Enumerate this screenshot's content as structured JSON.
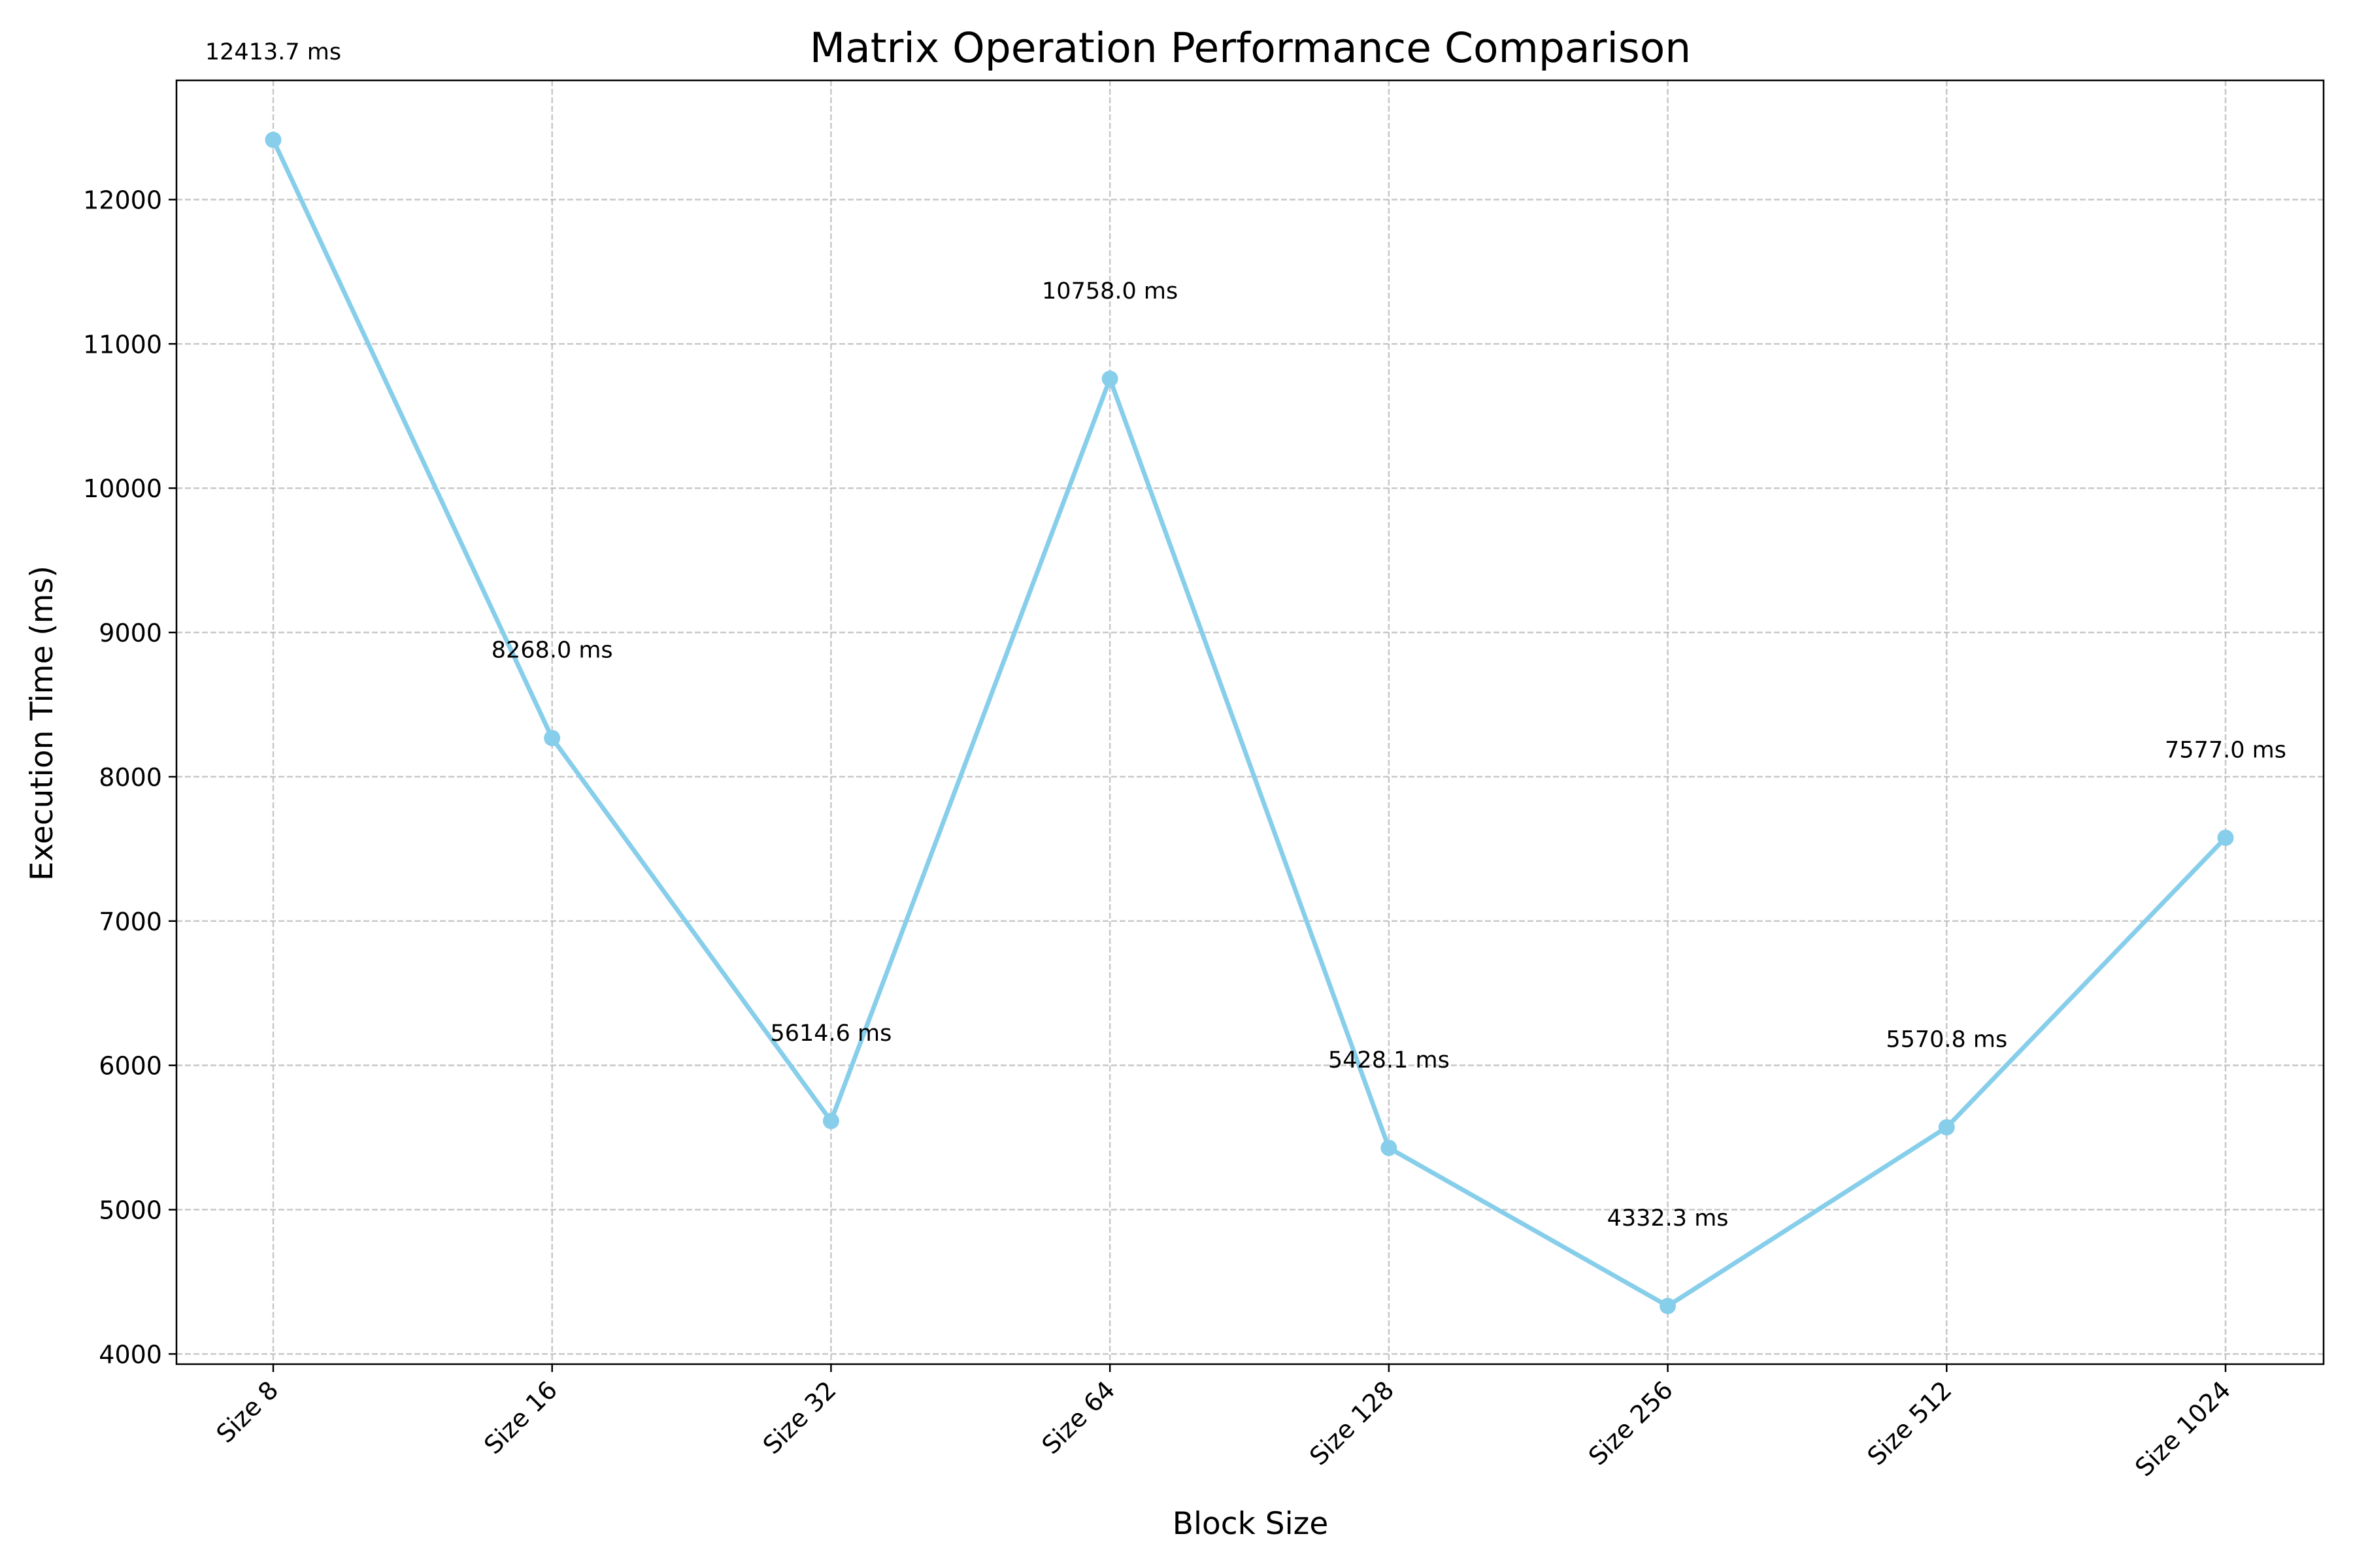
{
  "chart_data": {
    "type": "line",
    "title": "Matrix Operation Performance Comparison",
    "xlabel": "Block Size",
    "ylabel": "Execution Time (ms)",
    "categories": [
      "Size 8",
      "Size 16",
      "Size 32",
      "Size 64",
      "Size 128",
      "Size 256",
      "Size 512",
      "Size 1024"
    ],
    "series": [
      {
        "values": [
          12413.7,
          8268.0,
          5614.6,
          10758.0,
          5428.1,
          4332.3,
          5570.8,
          7577.0
        ],
        "color": "#87ceeb"
      }
    ],
    "data_labels": [
      "12413.7 ms",
      "8268.0 ms",
      "5614.6 ms",
      "10758.0 ms",
      "5428.1 ms",
      "4332.3 ms",
      "5570.8 ms",
      "7577.0 ms"
    ],
    "ylim": [
      3929.3,
      12826.1
    ],
    "yticks": [
      4000,
      5000,
      6000,
      7000,
      8000,
      9000,
      10000,
      11000,
      12000
    ],
    "ytick_labels": [
      "4000",
      "5000",
      "6000",
      "7000",
      "8000",
      "9000",
      "10000",
      "11000",
      "12000"
    ],
    "grid": true,
    "legend": "none"
  }
}
